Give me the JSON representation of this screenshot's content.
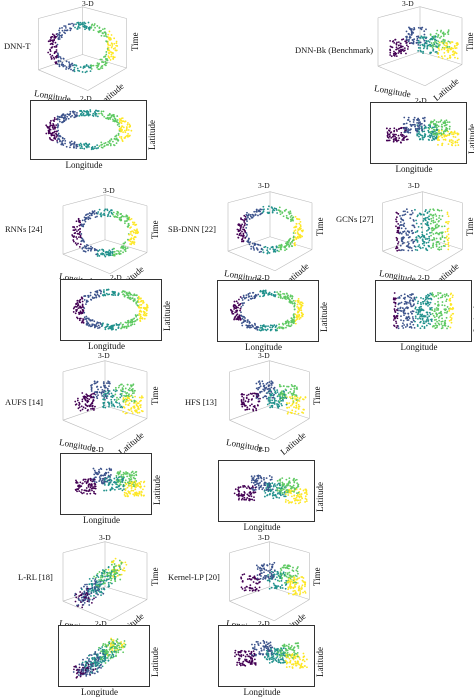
{
  "view_labels": {
    "three_d": "3-D",
    "two_d": "2-D"
  },
  "axis_labels": {
    "longitude": "Longitude",
    "latitude": "Latitude",
    "time": "Time"
  },
  "methods": [
    {
      "id": "dnn-t",
      "name": "DNN-T"
    },
    {
      "id": "dnn-bk",
      "name": "DNN-Bk (Benchmark)"
    },
    {
      "id": "rnns",
      "name": "RNNs [24]"
    },
    {
      "id": "sb-dnn",
      "name": "SB-DNN [22]"
    },
    {
      "id": "gcns",
      "name": "GCNs [27]"
    },
    {
      "id": "aufs",
      "name": "AUFS [14]"
    },
    {
      "id": "hfs",
      "name": "HFS [13]"
    },
    {
      "id": "l-rl",
      "name": "L-RL [18]"
    },
    {
      "id": "kernel-lp",
      "name": "Kernel-LP [20]"
    }
  ],
  "colormap": [
    "#440154",
    "#3b528b",
    "#21918c",
    "#5ec962",
    "#fde725"
  ]
}
